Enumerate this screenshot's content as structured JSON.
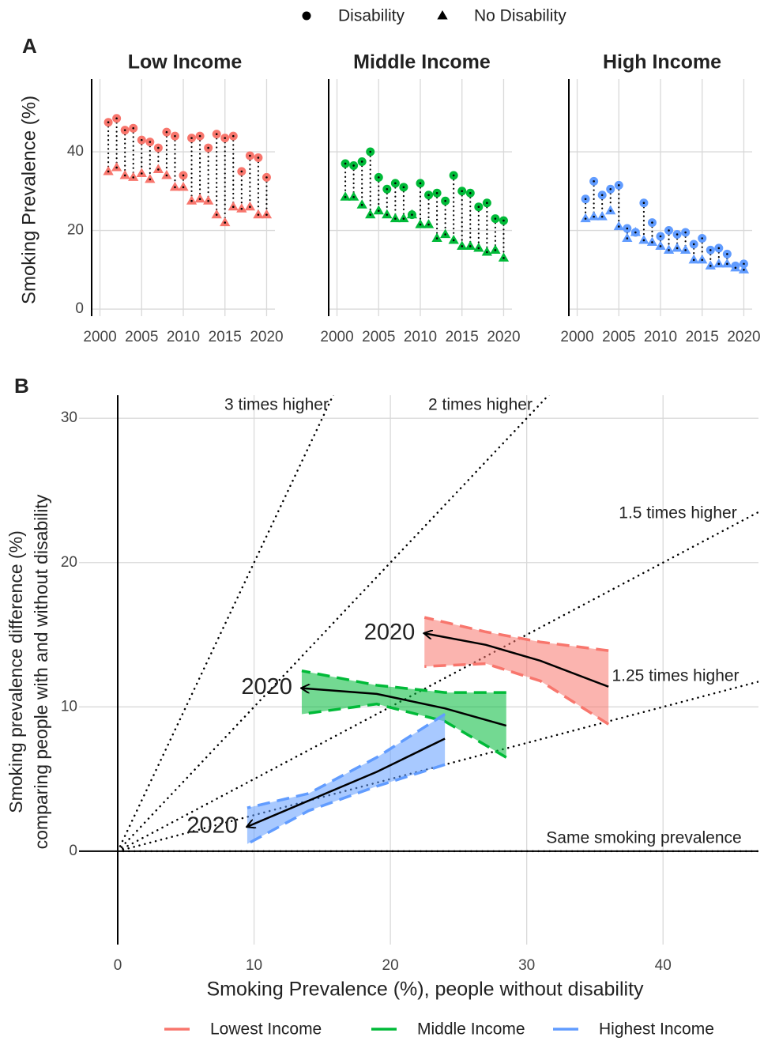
{
  "chart_data": [
    {
      "type": "scatter",
      "panel_label": "A",
      "title": "Low Income",
      "ylabel": "Smoking Prevalence (%)",
      "x": [
        2001,
        2002,
        2003,
        2004,
        2005,
        2006,
        2007,
        2008,
        2009,
        2010,
        2011,
        2012,
        2013,
        2014,
        2015,
        2016,
        2017,
        2018,
        2019,
        2020
      ],
      "series": [
        {
          "name": "Disability",
          "marker": "circle",
          "color": "#F8766D",
          "values": [
            47.5,
            48.5,
            45.5,
            46,
            43,
            42.5,
            41,
            45,
            44,
            34,
            43.5,
            44,
            41,
            44.5,
            43.5,
            44,
            35,
            39,
            38.5,
            33.5
          ]
        },
        {
          "name": "No Disability",
          "marker": "triangle",
          "color": "#F8766D",
          "values": [
            35,
            36,
            34,
            33.5,
            34.5,
            33,
            35.5,
            34,
            31,
            31,
            27.5,
            28,
            27.5,
            24,
            22,
            26,
            25.5,
            26,
            24,
            24
          ]
        }
      ],
      "xlim": [
        1999,
        2021
      ],
      "xticks": [
        2000,
        2005,
        2010,
        2015,
        2020
      ],
      "ylim": [
        -1.8,
        58.5
      ],
      "yticks": [
        0,
        20,
        40
      ],
      "grid": true
    },
    {
      "type": "scatter",
      "title": "Middle Income",
      "x": [
        2001,
        2002,
        2003,
        2004,
        2005,
        2006,
        2007,
        2008,
        2009,
        2010,
        2011,
        2012,
        2013,
        2014,
        2015,
        2016,
        2017,
        2018,
        2019,
        2020
      ],
      "series": [
        {
          "name": "Disability",
          "marker": "circle",
          "color": "#00BA38",
          "values": [
            37,
            36.5,
            37.5,
            40,
            33.5,
            30.5,
            32,
            31,
            24,
            32,
            29,
            29.5,
            27.5,
            34,
            30,
            29.5,
            26,
            27,
            23,
            22.5
          ]
        },
        {
          "name": "No Disability",
          "marker": "triangle",
          "color": "#00BA38",
          "values": [
            28.5,
            28.5,
            26.5,
            24,
            25,
            24,
            23,
            23,
            24,
            21.5,
            21.5,
            18,
            19,
            17.5,
            16,
            16,
            15.5,
            14.5,
            15,
            13
          ]
        }
      ],
      "xlim": [
        1999,
        2021
      ],
      "xticks": [
        2000,
        2005,
        2010,
        2015,
        2020
      ],
      "ylim": [
        -1.8,
        58.5
      ],
      "yticks": [
        0,
        20,
        40
      ],
      "grid": true
    },
    {
      "type": "scatter",
      "title": "High Income",
      "x": [
        2001,
        2002,
        2003,
        2004,
        2005,
        2006,
        2007,
        2008,
        2009,
        2010,
        2011,
        2012,
        2013,
        2014,
        2015,
        2016,
        2017,
        2018,
        2019,
        2020
      ],
      "series": [
        {
          "name": "Disability",
          "marker": "circle",
          "color": "#619CFF",
          "values": [
            28,
            32.5,
            29,
            30.5,
            31.5,
            20.5,
            19.5,
            27,
            22,
            18.5,
            20,
            19,
            19.5,
            16.5,
            18,
            15,
            15.5,
            14,
            11,
            11.5
          ]
        },
        {
          "name": "No Disability",
          "marker": "triangle",
          "color": "#619CFF",
          "values": [
            23,
            23.5,
            23.5,
            25,
            21,
            18,
            19.5,
            17.5,
            17,
            16,
            15,
            15.5,
            15,
            12.5,
            12.5,
            11,
            11.5,
            11.5,
            10.5,
            10
          ]
        }
      ],
      "xlim": [
        1999,
        2021
      ],
      "xticks": [
        2000,
        2005,
        2010,
        2015,
        2020
      ],
      "ylim": [
        -1.8,
        58.5
      ],
      "yticks": [
        0,
        20,
        40
      ],
      "grid": true
    },
    {
      "type": "line",
      "panel_label": "B",
      "xlabel": "Smoking Prevalence (%), people without disability",
      "ylabel": [
        "Smoking prevalence difference (%)",
        "comparing people with and without disability"
      ],
      "series": [
        {
          "name": "Lowest Income",
          "color": "#F8766D",
          "end_label": "2020",
          "x": [
            36,
            31,
            27,
            22.5
          ],
          "values": [
            11.4,
            13.2,
            14.3,
            15.1
          ],
          "lower": [
            8.8,
            11.8,
            13,
            12.8
          ],
          "upper": [
            13.9,
            14.5,
            15.2,
            16.2
          ]
        },
        {
          "name": "Middle Income",
          "color": "#00BA38",
          "end_label": "2020",
          "x": [
            28.5,
            24,
            19,
            13.5
          ],
          "values": [
            8.7,
            9.9,
            10.9,
            11.3
          ],
          "lower": [
            6.5,
            9,
            10.2,
            9.5
          ],
          "upper": [
            11,
            11,
            11.5,
            12.5
          ]
        },
        {
          "name": "Highest Income",
          "color": "#619CFF",
          "end_label": "2020",
          "x": [
            24,
            19,
            14,
            9.5
          ],
          "values": [
            7.8,
            5.5,
            3.5,
            1.7
          ],
          "lower": [
            6,
            4.5,
            2.8,
            0.5
          ],
          "upper": [
            9.5,
            6.5,
            4,
            3
          ]
        }
      ],
      "reference_lines": [
        {
          "label": "3 times higher",
          "slope": 2
        },
        {
          "label": "2 times higher",
          "slope": 1
        },
        {
          "label": "1.5 times higher",
          "slope": 0.5
        },
        {
          "label": "1.25 times higher",
          "slope": 0.25
        },
        {
          "label": "Same smoking prevalence",
          "slope": 0
        }
      ],
      "xlim": [
        -2.84,
        47
      ],
      "xticks": [
        0,
        10,
        20,
        30,
        40
      ],
      "ylim": [
        -6.47,
        31.6
      ],
      "yticks": [
        0,
        10,
        20,
        30
      ],
      "grid": true
    }
  ]
}
